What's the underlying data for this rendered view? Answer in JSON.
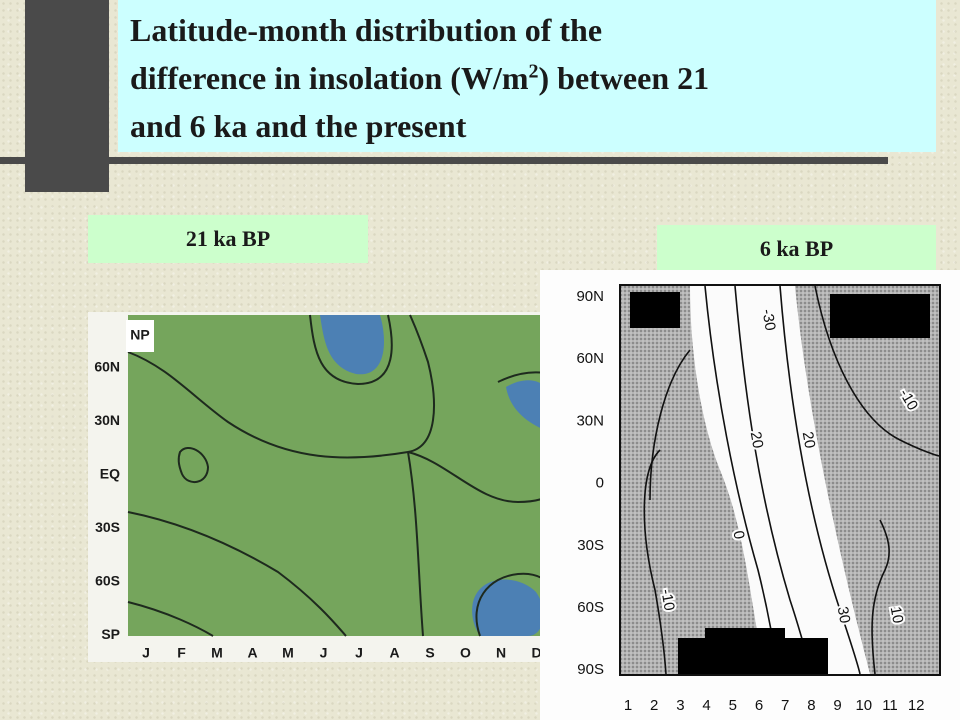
{
  "title": [
    "Latitude-month distribution of the",
    "difference in insolation (W/m",
    "2",
    ") between 21",
    "and 6 ka and the present"
  ],
  "panels": [
    {
      "label": "21 ka BP",
      "pole_label": "NP",
      "y_labels": [
        "60N",
        "30N",
        "EQ",
        "30S",
        "60S",
        "SP"
      ],
      "x_labels": [
        "J",
        "F",
        "M",
        "A",
        "M",
        "J",
        "J",
        "A",
        "S",
        "O",
        "N",
        "D"
      ]
    },
    {
      "label": "6 ka BP",
      "y_labels": [
        "90N",
        "60N",
        "30N",
        "0",
        "30S",
        "60S",
        "90S"
      ],
      "x_labels": [
        "1",
        "2",
        "3",
        "4",
        "5",
        "6",
        "7",
        "8",
        "9",
        "10",
        "11",
        "12"
      ],
      "contour_labels": [
        "-30",
        "20",
        "20",
        "-10",
        "0",
        "-10",
        "30",
        "10"
      ]
    }
  ]
}
